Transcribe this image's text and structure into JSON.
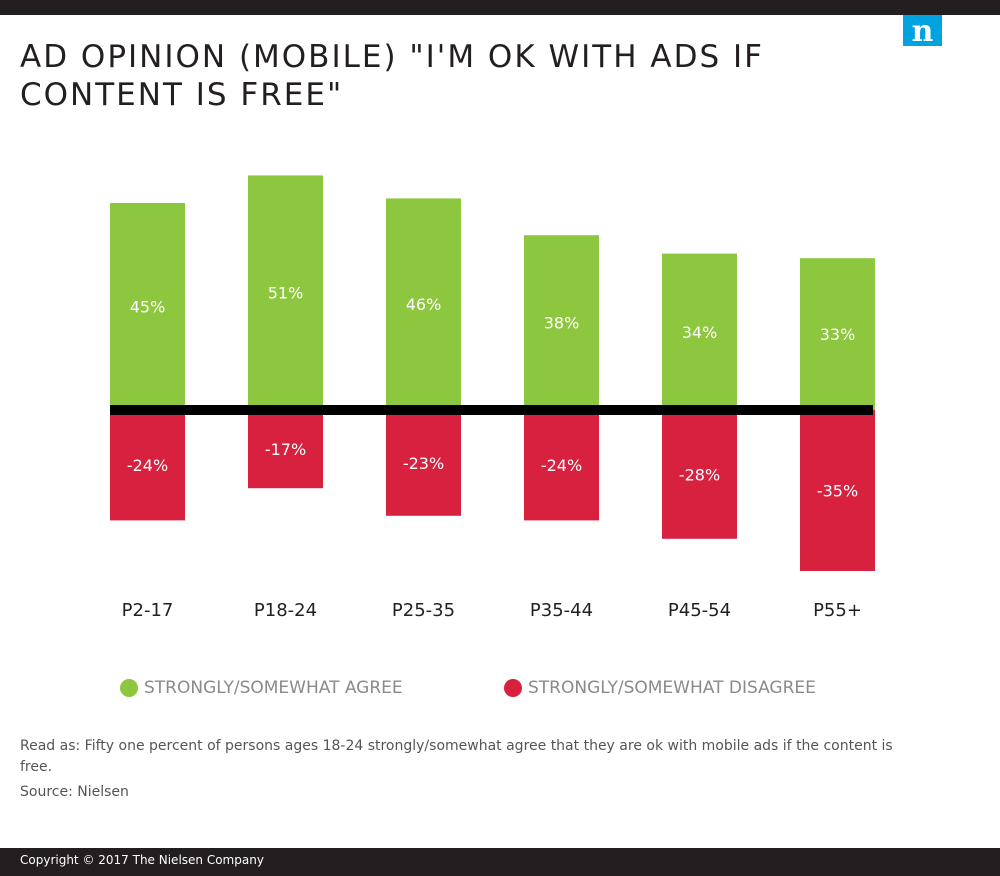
{
  "colors": {
    "agree": "#8dc63f",
    "disagree": "#d8203f",
    "axis": "#000000",
    "bar_label": "#ffffff",
    "tick": "#231f20",
    "logo_bg": "#00a3e0",
    "dark_band": "#231f20"
  },
  "logo": {
    "icon": "nielsen-n-logo",
    "letter": "n"
  },
  "chart_data": {
    "type": "bar",
    "stacked": "diverging",
    "title": "AD OPINION (MOBILE) \"I'M OK WITH ADS IF CONTENT IS FREE\"",
    "categories": [
      "P2-17",
      "P18-24",
      "P25-35",
      "P35-44",
      "P45-54",
      "P55+"
    ],
    "series": [
      {
        "name": "STRONGLY/SOMEWHAT AGREE",
        "values": [
          45,
          51,
          46,
          38,
          34,
          33
        ],
        "labels": [
          "45%",
          "51%",
          "46%",
          "38%",
          "34%",
          "33%"
        ]
      },
      {
        "name": "STRONGLY/SOMEWHAT DISAGREE",
        "values": [
          -24,
          -17,
          -23,
          -24,
          -28,
          -35
        ],
        "labels": [
          "-24%",
          "-17%",
          "-23%",
          "-24%",
          "-28%",
          "-35%"
        ]
      }
    ],
    "ylim": [
      -35,
      51
    ],
    "grid": false,
    "legend_position": "bottom"
  },
  "note": "Read as: Fifty one percent of persons ages 18-24 strongly/somewhat agree that they are ok with mobile ads if the content is free.",
  "source": "Source: Nielsen",
  "copyright": "Copyright © 2017 The Nielsen Company"
}
